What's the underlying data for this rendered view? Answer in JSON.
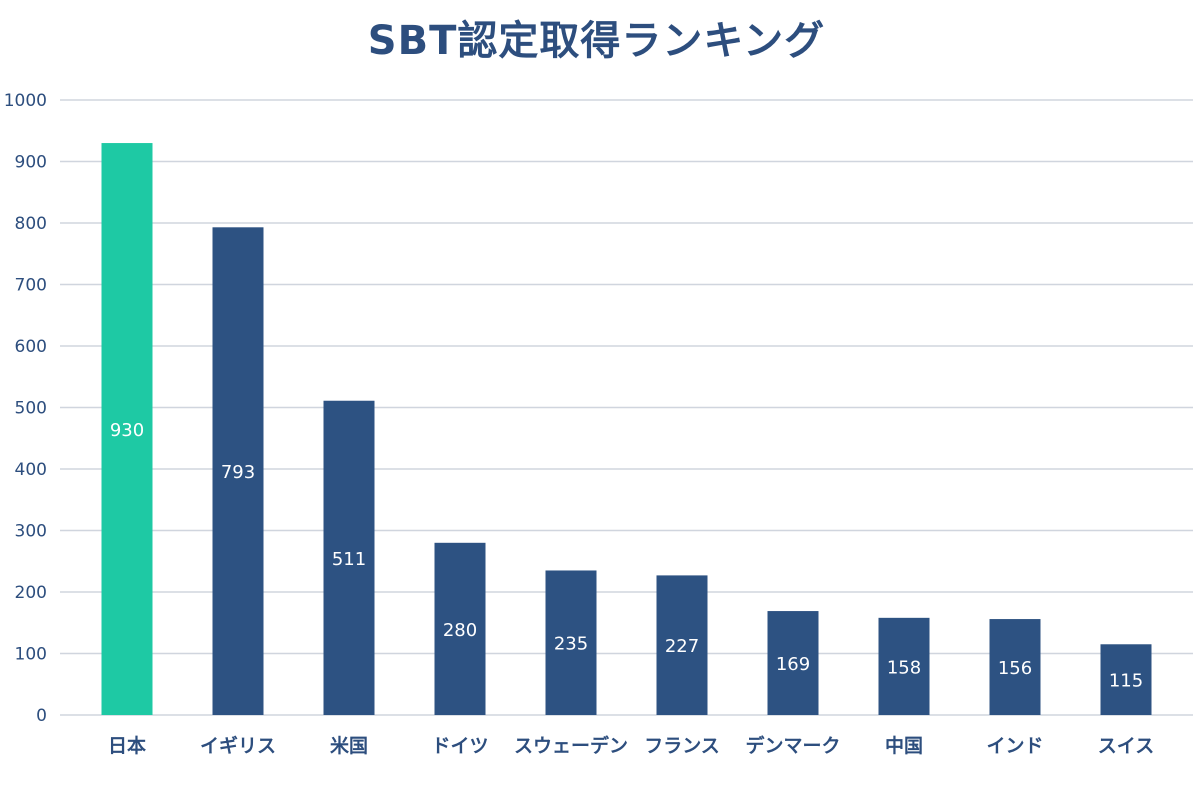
{
  "chart_data": {
    "type": "bar",
    "title": "SBT認定取得ランキング",
    "xlabel": "",
    "ylabel": "",
    "categories": [
      "日本",
      "イギリス",
      "米国",
      "ドイツ",
      "スウェーデン",
      "フランス",
      "デンマーク",
      "中国",
      "インド",
      "スイス"
    ],
    "values": [
      930,
      793,
      511,
      280,
      235,
      227,
      169,
      158,
      156,
      115
    ],
    "ylim": [
      0,
      1000
    ],
    "yticks": [
      0,
      100,
      200,
      300,
      400,
      500,
      600,
      700,
      800,
      900,
      1000
    ],
    "grid": true,
    "legend": "none",
    "colors": {
      "highlight": "#1ec9a4",
      "default": "#2d5282",
      "text": "#2d4e7e",
      "grid": "#d0d5de"
    },
    "highlight_index": 0
  }
}
